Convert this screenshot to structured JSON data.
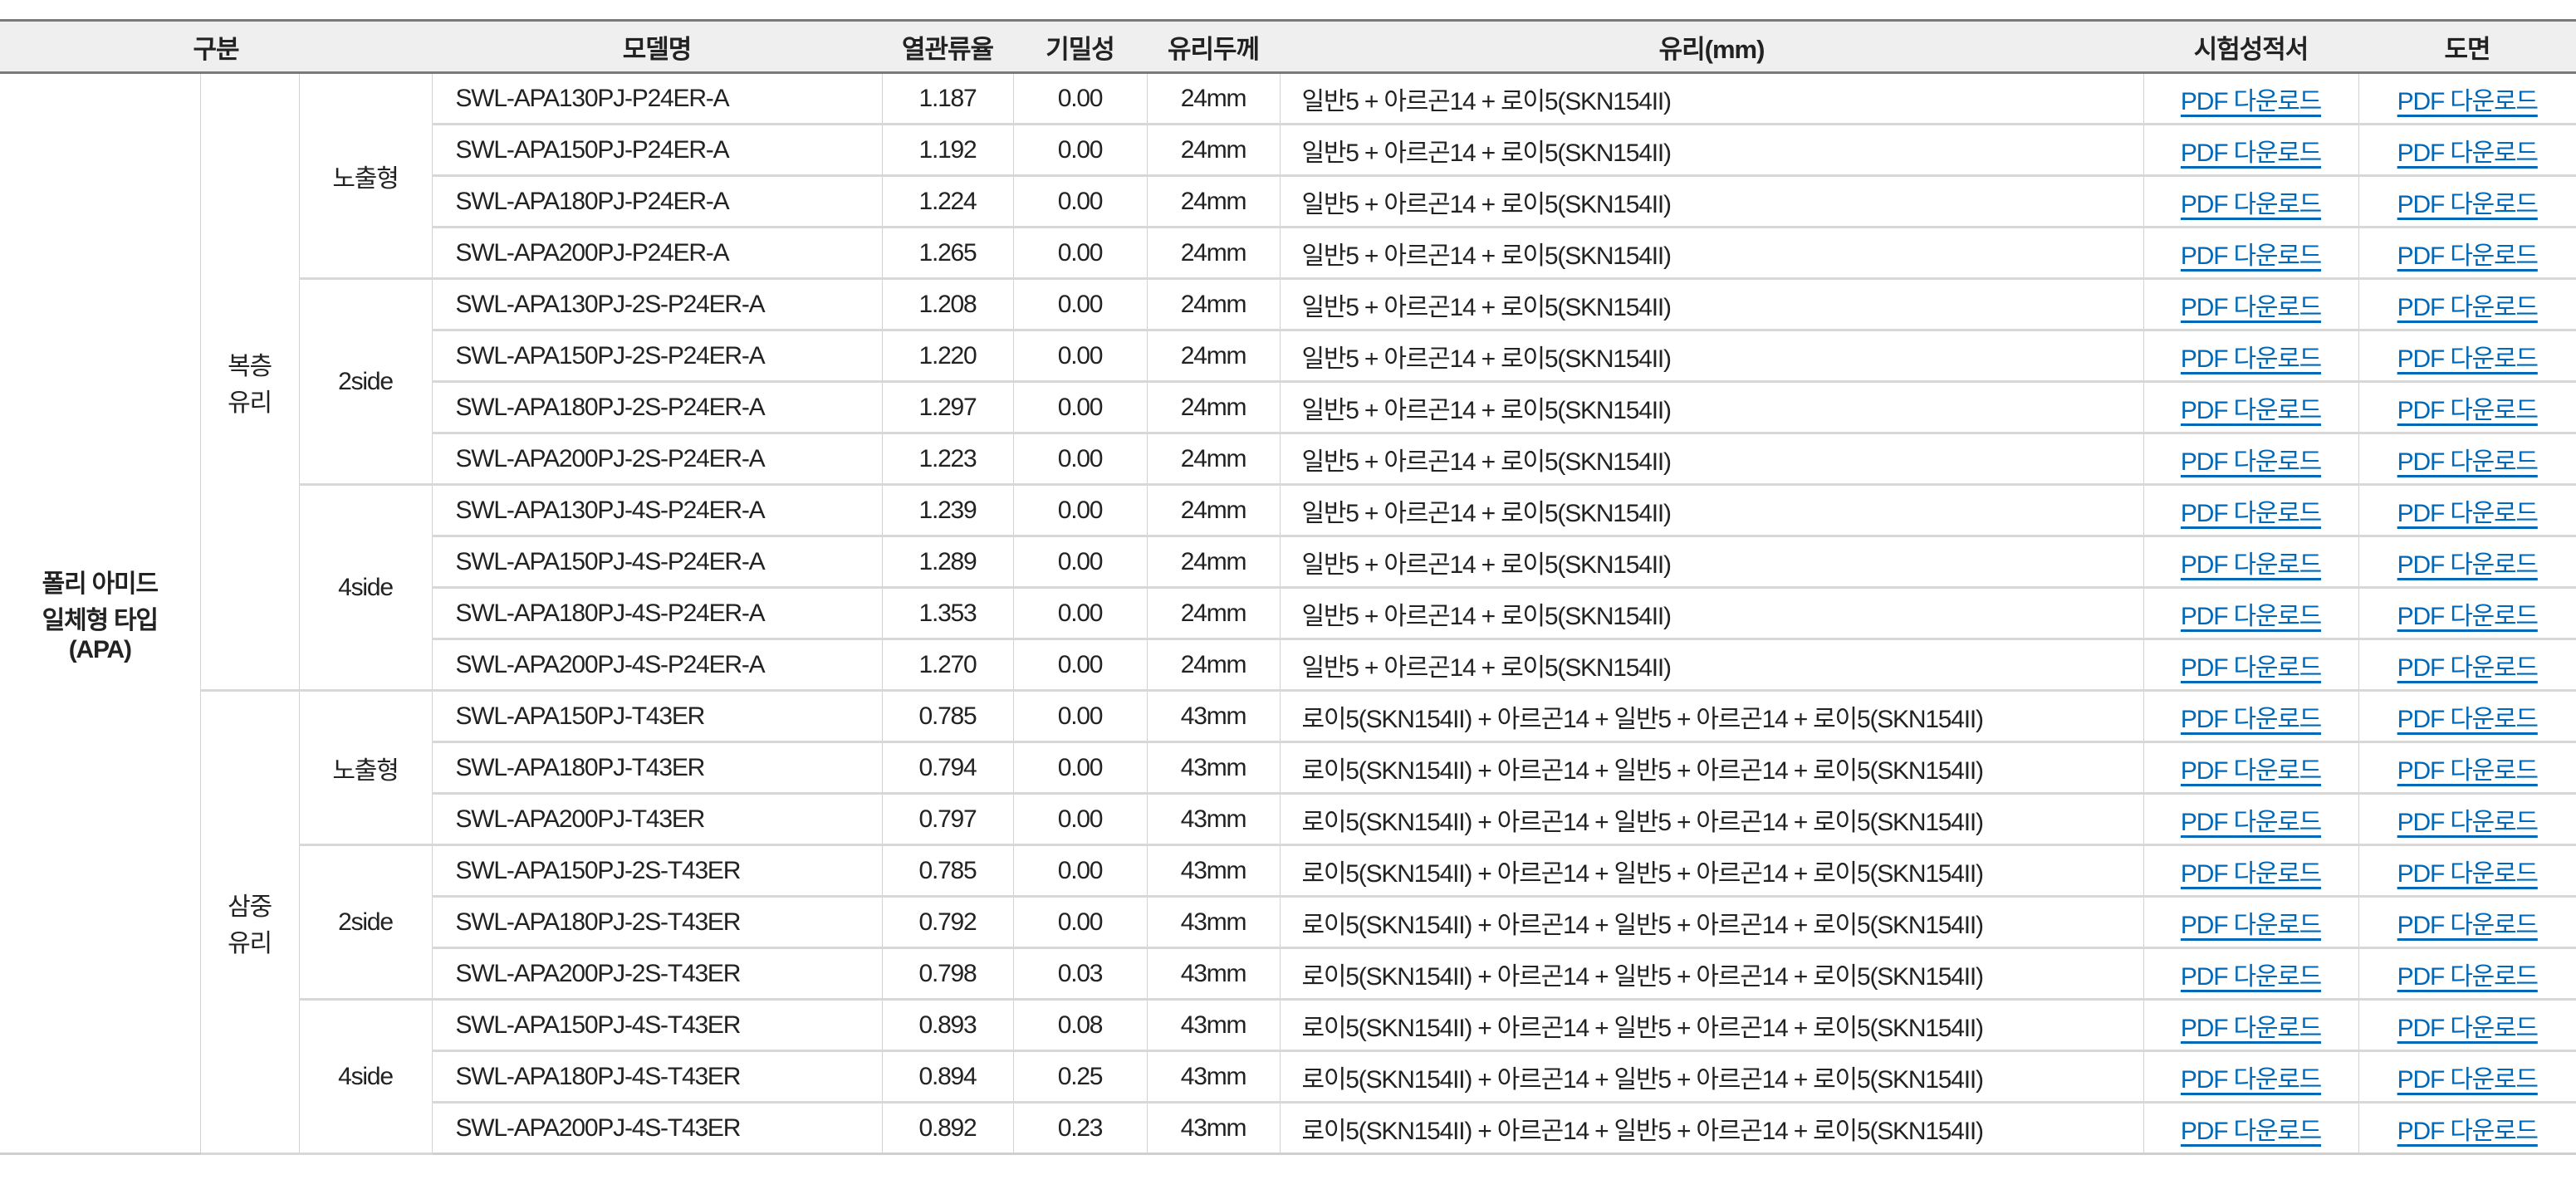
{
  "header": [
    "구분",
    "모델명",
    "열관류율",
    "기밀성",
    "유리두께",
    "유리(mm)",
    "시험성적서",
    "도면"
  ],
  "category": "폴리 아미드\n일체형 타입\n(APA)",
  "link_label": "PDF 다운로드",
  "glass_types": [
    {
      "label": "복층\n유리",
      "subgroups": [
        {
          "label": "노출형",
          "rows": [
            [
              "SWL-APA130PJ-P24ER-A",
              "1.187",
              "0.00",
              "24mm",
              "일반5 + 아르곤14 + 로이5(SKN154II)"
            ],
            [
              "SWL-APA150PJ-P24ER-A",
              "1.192",
              "0.00",
              "24mm",
              "일반5 + 아르곤14 + 로이5(SKN154II)"
            ],
            [
              "SWL-APA180PJ-P24ER-A",
              "1.224",
              "0.00",
              "24mm",
              "일반5 + 아르곤14 + 로이5(SKN154II)"
            ],
            [
              "SWL-APA200PJ-P24ER-A",
              "1.265",
              "0.00",
              "24mm",
              "일반5 + 아르곤14 + 로이5(SKN154II)"
            ]
          ]
        },
        {
          "label": "2side",
          "rows": [
            [
              "SWL-APA130PJ-2S-P24ER-A",
              "1.208",
              "0.00",
              "24mm",
              "일반5 + 아르곤14 + 로이5(SKN154II)"
            ],
            [
              "SWL-APA150PJ-2S-P24ER-A",
              "1.220",
              "0.00",
              "24mm",
              "일반5 + 아르곤14 + 로이5(SKN154II)"
            ],
            [
              "SWL-APA180PJ-2S-P24ER-A",
              "1.297",
              "0.00",
              "24mm",
              "일반5 + 아르곤14 + 로이5(SKN154II)"
            ],
            [
              "SWL-APA200PJ-2S-P24ER-A",
              "1.223",
              "0.00",
              "24mm",
              "일반5 + 아르곤14 + 로이5(SKN154II)"
            ]
          ]
        },
        {
          "label": "4side",
          "rows": [
            [
              "SWL-APA130PJ-4S-P24ER-A",
              "1.239",
              "0.00",
              "24mm",
              "일반5 + 아르곤14 + 로이5(SKN154II)"
            ],
            [
              "SWL-APA150PJ-4S-P24ER-A",
              "1.289",
              "0.00",
              "24mm",
              "일반5 + 아르곤14 + 로이5(SKN154II)"
            ],
            [
              "SWL-APA180PJ-4S-P24ER-A",
              "1.353",
              "0.00",
              "24mm",
              "일반5 + 아르곤14 + 로이5(SKN154II)"
            ],
            [
              "SWL-APA200PJ-4S-P24ER-A",
              "1.270",
              "0.00",
              "24mm",
              "일반5 + 아르곤14 + 로이5(SKN154II)"
            ]
          ]
        }
      ]
    },
    {
      "label": "삼중\n유리",
      "subgroups": [
        {
          "label": "노출형",
          "rows": [
            [
              "SWL-APA150PJ-T43ER",
              "0.785",
              "0.00",
              "43mm",
              "로이5(SKN154II) + 아르곤14 + 일반5 + 아르곤14 + 로이5(SKN154II)"
            ],
            [
              "SWL-APA180PJ-T43ER",
              "0.794",
              "0.00",
              "43mm",
              "로이5(SKN154II) + 아르곤14 + 일반5 + 아르곤14 + 로이5(SKN154II)"
            ],
            [
              "SWL-APA200PJ-T43ER",
              "0.797",
              "0.00",
              "43mm",
              "로이5(SKN154II) + 아르곤14 + 일반5 + 아르곤14 + 로이5(SKN154II)"
            ]
          ]
        },
        {
          "label": "2side",
          "rows": [
            [
              "SWL-APA150PJ-2S-T43ER",
              "0.785",
              "0.00",
              "43mm",
              "로이5(SKN154II) + 아르곤14 + 일반5 + 아르곤14 + 로이5(SKN154II)"
            ],
            [
              "SWL-APA180PJ-2S-T43ER",
              "0.792",
              "0.00",
              "43mm",
              "로이5(SKN154II) + 아르곤14 + 일반5 + 아르곤14 + 로이5(SKN154II)"
            ],
            [
              "SWL-APA200PJ-2S-T43ER",
              "0.798",
              "0.03",
              "43mm",
              "로이5(SKN154II) + 아르곤14 + 일반5 + 아르곤14 + 로이5(SKN154II)"
            ]
          ]
        },
        {
          "label": "4side",
          "rows": [
            [
              "SWL-APA150PJ-4S-T43ER",
              "0.893",
              "0.08",
              "43mm",
              "로이5(SKN154II) + 아르곤14 + 일반5 + 아르곤14 + 로이5(SKN154II)"
            ],
            [
              "SWL-APA180PJ-4S-T43ER",
              "0.894",
              "0.25",
              "43mm",
              "로이5(SKN154II) + 아르곤14 + 일반5 + 아르곤14 + 로이5(SKN154II)"
            ],
            [
              "SWL-APA200PJ-4S-T43ER",
              "0.892",
              "0.23",
              "43mm",
              "로이5(SKN154II) + 아르곤14 + 일반5 + 아르곤14 + 로이5(SKN154II)"
            ]
          ]
        }
      ]
    }
  ],
  "colors": {
    "link": "#0068b7",
    "header_bg": "#efefef",
    "header_border": "#7a7a7a"
  }
}
